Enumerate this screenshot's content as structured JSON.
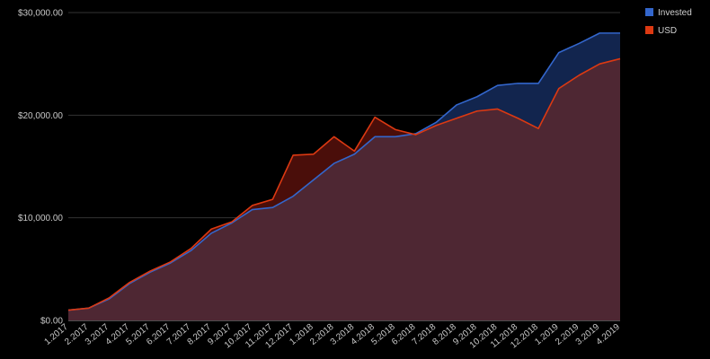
{
  "chart_data": {
    "type": "area",
    "categories": [
      "1.2017",
      "2.2017",
      "3.2017",
      "4.2017",
      "5.2017",
      "6.2017",
      "7.2017",
      "8.2017",
      "9.2017",
      "10.2017",
      "11.2017",
      "12.2017",
      "1.2018",
      "2.2018",
      "3.2018",
      "4.2018",
      "5.2018",
      "6.2018",
      "7.2018",
      "8.2018",
      "9.2018",
      "10.2018",
      "11.2018",
      "12.2018",
      "1.2019",
      "2.2019",
      "3.2019",
      "4.2019"
    ],
    "series": [
      {
        "name": "Invested",
        "color": "#3366cc",
        "values": [
          1000,
          1200,
          2100,
          3600,
          4700,
          5600,
          6800,
          8500,
          9500,
          10800,
          11000,
          12100,
          13700,
          15300,
          16200,
          17900,
          17900,
          18200,
          19300,
          21000,
          21800,
          22900,
          23100,
          23100,
          26100,
          27000,
          28000,
          28000
        ]
      },
      {
        "name": "USD",
        "color": "#dc3912",
        "values": [
          1000,
          1200,
          2200,
          3700,
          4800,
          5700,
          7000,
          8900,
          9600,
          11200,
          11800,
          16100,
          16200,
          17900,
          16500,
          19800,
          18600,
          18100,
          19000,
          19700,
          20400,
          20600,
          19700,
          18700,
          22600,
          23900,
          25000,
          25500
        ]
      }
    ],
    "yticks": [
      0,
      10000,
      20000,
      30000
    ],
    "ytick_labels": [
      "$0.00",
      "$10,000.00",
      "$20,000.00",
      "$30,000.00"
    ],
    "ylim": [
      0,
      30000
    ],
    "grid": true,
    "legend_position": "top-right"
  }
}
